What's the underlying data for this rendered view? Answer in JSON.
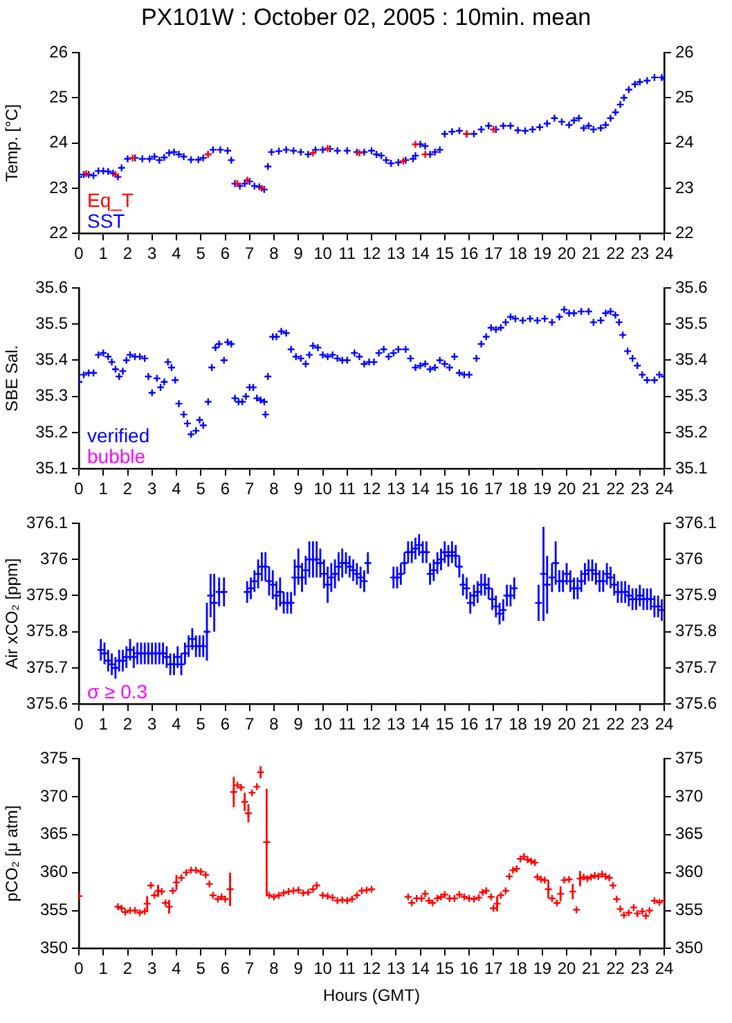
{
  "chart_data": [
    {
      "type": "scatter",
      "title": "PX101W : October 02, 2005 : 10min. mean",
      "ylabel": "Temp. [°C]",
      "xlim": [
        0,
        24
      ],
      "xticks": [
        0,
        1,
        2,
        3,
        4,
        5,
        6,
        7,
        8,
        9,
        10,
        11,
        12,
        13,
        14,
        15,
        16,
        17,
        18,
        19,
        20,
        21,
        22,
        23,
        24
      ],
      "ylim": [
        22,
        26
      ],
      "yticks": [
        22,
        23,
        24,
        25,
        26
      ],
      "y2lim": [
        22,
        26
      ],
      "y2ticks": [
        22,
        23,
        24,
        25,
        26
      ],
      "marker": "cross",
      "legend": "bottom left",
      "series": [
        {
          "name": "Eq_T",
          "color": "#ff0000",
          "x": [
            0.3,
            1.5,
            2.2,
            5.3,
            6.5,
            6.9,
            7.5,
            9.6,
            10.2,
            11.5,
            13.3,
            13.8,
            14.2,
            15.9,
            17.0
          ],
          "values": [
            23.32,
            23.3,
            23.67,
            23.75,
            23.1,
            23.18,
            23.0,
            23.78,
            23.88,
            23.78,
            23.6,
            23.97,
            23.75,
            24.2,
            24.3
          ]
        },
        {
          "name": "SST",
          "color": "#0000ff",
          "x": [
            0.0,
            0.2,
            0.4,
            0.6,
            0.8,
            1.0,
            1.2,
            1.4,
            1.6,
            1.75,
            2.0,
            2.3,
            2.6,
            2.9,
            3.1,
            3.3,
            3.5,
            3.7,
            3.9,
            4.1,
            4.3,
            4.6,
            4.9,
            5.1,
            5.3,
            5.5,
            5.8,
            6.1,
            6.25,
            6.4,
            6.6,
            6.8,
            7.0,
            7.2,
            7.4,
            7.6,
            7.75,
            7.9,
            8.2,
            8.5,
            8.8,
            9.1,
            9.4,
            9.7,
            10.0,
            10.3,
            10.6,
            11.0,
            11.4,
            11.7,
            12.0,
            12.2,
            12.4,
            12.6,
            12.8,
            13.1,
            13.4,
            13.7,
            13.8,
            14.0,
            14.2,
            14.4,
            14.6,
            14.8,
            15.0,
            15.3,
            15.6,
            15.9,
            16.2,
            16.5,
            16.8,
            17.1,
            17.4,
            17.7,
            18.0,
            18.3,
            18.6,
            18.9,
            19.2,
            19.5,
            19.8,
            20.1,
            20.3,
            20.5,
            20.7,
            20.9,
            21.1,
            21.4,
            21.6,
            21.8,
            22.0,
            22.2,
            22.35,
            22.55,
            22.8,
            23.0,
            23.3,
            23.6,
            23.9,
            24.0
          ],
          "values": [
            23.25,
            23.3,
            23.3,
            23.28,
            23.38,
            23.38,
            23.37,
            23.33,
            23.25,
            23.45,
            23.65,
            23.67,
            23.65,
            23.65,
            23.7,
            23.62,
            23.68,
            23.78,
            23.8,
            23.75,
            23.7,
            23.63,
            23.63,
            23.67,
            23.75,
            23.85,
            23.85,
            23.83,
            23.62,
            23.1,
            23.05,
            23.1,
            23.15,
            23.05,
            23.03,
            22.97,
            23.48,
            23.8,
            23.82,
            23.85,
            23.83,
            23.8,
            23.75,
            23.85,
            23.85,
            23.87,
            23.83,
            23.83,
            23.8,
            23.8,
            23.83,
            23.75,
            23.72,
            23.62,
            23.55,
            23.57,
            23.62,
            23.65,
            23.72,
            23.97,
            23.93,
            23.75,
            23.8,
            23.85,
            24.2,
            24.25,
            24.27,
            24.2,
            24.2,
            24.3,
            24.38,
            24.3,
            24.38,
            24.38,
            24.28,
            24.27,
            24.3,
            24.35,
            24.43,
            24.55,
            24.47,
            24.4,
            24.5,
            24.55,
            24.33,
            24.38,
            24.3,
            24.33,
            24.4,
            24.55,
            24.68,
            24.85,
            25.0,
            25.18,
            25.3,
            25.35,
            25.38,
            25.45,
            25.45,
            25.42
          ]
        }
      ]
    },
    {
      "type": "scatter",
      "ylabel": "SBE Sal.",
      "xlim": [
        0,
        24
      ],
      "xticks": [
        0,
        1,
        2,
        3,
        4,
        5,
        6,
        7,
        8,
        9,
        10,
        11,
        12,
        13,
        14,
        15,
        16,
        17,
        18,
        19,
        20,
        21,
        22,
        23,
        24
      ],
      "ylim": [
        35.1,
        35.6
      ],
      "yticks": [
        35.1,
        35.2,
        35.3,
        35.4,
        35.5,
        35.6
      ],
      "y2lim": [
        35.1,
        35.6
      ],
      "y2ticks": [
        35.1,
        35.2,
        35.3,
        35.4,
        35.5,
        35.6
      ],
      "marker": "cross",
      "legend": "bottom left",
      "series": [
        {
          "name": "verified",
          "color": "#0000ff",
          "x": [
            0.0,
            0.2,
            0.4,
            0.6,
            0.8,
            1.0,
            1.2,
            1.35,
            1.5,
            1.65,
            1.8,
            1.95,
            2.1,
            2.3,
            2.5,
            2.7,
            2.85,
            3.0,
            3.2,
            3.35,
            3.5,
            3.65,
            3.8,
            3.95,
            4.1,
            4.3,
            4.45,
            4.6,
            4.8,
            4.95,
            5.1,
            5.3,
            5.45,
            5.6,
            5.75,
            5.95,
            6.1,
            6.25,
            6.4,
            6.55,
            6.7,
            6.85,
            7.0,
            7.15,
            7.3,
            7.45,
            7.6,
            7.65,
            7.75,
            7.95,
            8.1,
            8.3,
            8.5,
            8.7,
            8.9,
            9.1,
            9.3,
            9.45,
            9.6,
            9.8,
            10.0,
            10.2,
            10.4,
            10.6,
            10.8,
            11.0,
            11.3,
            11.5,
            11.7,
            11.9,
            12.1,
            12.3,
            12.5,
            12.7,
            12.9,
            13.1,
            13.4,
            13.6,
            13.8,
            14.0,
            14.2,
            14.4,
            14.6,
            14.8,
            15.0,
            15.2,
            15.4,
            15.6,
            15.8,
            16.0,
            16.3,
            16.5,
            16.7,
            16.9,
            17.1,
            17.3,
            17.5,
            17.7,
            17.9,
            18.2,
            18.5,
            18.8,
            19.1,
            19.4,
            19.7,
            19.9,
            20.1,
            20.3,
            20.6,
            20.9,
            21.1,
            21.4,
            21.6,
            21.8,
            22.0,
            22.15,
            22.3,
            22.5,
            22.7,
            22.9,
            23.1,
            23.3,
            23.6,
            23.8,
            24.0
          ],
          "values": [
            35.34,
            35.36,
            35.365,
            35.365,
            35.415,
            35.42,
            35.41,
            35.395,
            35.375,
            35.355,
            35.37,
            35.4,
            35.415,
            35.41,
            35.41,
            35.405,
            35.355,
            35.31,
            35.35,
            35.325,
            35.34,
            35.395,
            35.38,
            35.345,
            35.28,
            35.25,
            35.225,
            35.195,
            35.205,
            35.235,
            35.22,
            35.285,
            35.38,
            35.435,
            35.445,
            35.4,
            35.45,
            35.445,
            35.295,
            35.285,
            35.285,
            35.3,
            35.325,
            35.325,
            35.295,
            35.29,
            35.285,
            35.25,
            35.355,
            35.465,
            35.465,
            35.48,
            35.475,
            35.43,
            35.41,
            35.405,
            35.39,
            35.415,
            35.44,
            35.435,
            35.415,
            35.41,
            35.415,
            35.405,
            35.4,
            35.4,
            35.42,
            35.41,
            35.39,
            35.395,
            35.395,
            35.42,
            35.43,
            35.41,
            35.42,
            35.43,
            35.43,
            35.405,
            35.38,
            35.385,
            35.39,
            35.375,
            35.38,
            35.4,
            35.39,
            35.38,
            35.41,
            35.365,
            35.36,
            35.36,
            35.405,
            35.445,
            35.465,
            35.49,
            35.485,
            35.49,
            35.505,
            35.52,
            35.515,
            35.51,
            35.515,
            35.51,
            35.515,
            35.505,
            35.52,
            35.54,
            35.53,
            35.53,
            35.535,
            35.535,
            35.505,
            35.51,
            35.53,
            35.535,
            35.525,
            35.505,
            35.47,
            35.425,
            35.405,
            35.385,
            35.36,
            35.345,
            35.345,
            35.36,
            35.355
          ]
        },
        {
          "name": "bubble",
          "color": "#ff00ff"
        }
      ]
    },
    {
      "type": "scatter",
      "ylabel": "Air xCO₂ [ppm]",
      "xlim": [
        0,
        24
      ],
      "xticks": [
        0,
        1,
        2,
        3,
        4,
        5,
        6,
        7,
        8,
        9,
        10,
        11,
        12,
        13,
        14,
        15,
        16,
        17,
        18,
        19,
        20,
        21,
        22,
        23,
        24
      ],
      "ylim": [
        375.6,
        376.1
      ],
      "yticks": [
        375.6,
        375.7,
        375.8,
        375.9,
        376,
        376.1
      ],
      "y2lim": [
        375.6,
        376.1
      ],
      "y2ticks": [
        375.6,
        375.7,
        375.8,
        375.9,
        376,
        376.1
      ],
      "marker": "cross",
      "series": [
        {
          "color": "#0000ff",
          "x": [
            0.9,
            1.05,
            1.2,
            1.35,
            1.5,
            1.65,
            1.8,
            1.95,
            2.1,
            2.25,
            2.4,
            2.55,
            2.7,
            2.85,
            3.0,
            3.15,
            3.3,
            3.45,
            3.6,
            3.75,
            3.9,
            4.05,
            4.2,
            4.35,
            4.5,
            4.65,
            4.8,
            4.95,
            5.1,
            5.25,
            5.4,
            5.55,
            5.75,
            5.95,
            6.9,
            7.05,
            7.2,
            7.35,
            7.5,
            7.65,
            7.8,
            7.95,
            8.1,
            8.25,
            8.4,
            8.55,
            8.7,
            8.85,
            9.0,
            9.15,
            9.3,
            9.45,
            9.6,
            9.75,
            9.9,
            10.05,
            10.2,
            10.35,
            10.5,
            10.65,
            10.8,
            10.95,
            11.1,
            11.25,
            11.4,
            11.55,
            11.7,
            11.85,
            12.9,
            13.05,
            13.2,
            13.35,
            13.5,
            13.65,
            13.8,
            13.95,
            14.1,
            14.25,
            14.4,
            14.55,
            14.7,
            14.85,
            15.0,
            15.15,
            15.3,
            15.45,
            15.6,
            15.75,
            15.9,
            16.05,
            16.2,
            16.35,
            16.5,
            16.65,
            16.8,
            16.95,
            17.1,
            17.25,
            17.4,
            17.55,
            17.7,
            17.85,
            18.85,
            19.05,
            19.2,
            19.4,
            19.55,
            19.7,
            19.85,
            20.0,
            20.15,
            20.3,
            20.45,
            20.6,
            20.75,
            20.9,
            21.05,
            21.2,
            21.35,
            21.5,
            21.65,
            21.8,
            21.95,
            22.1,
            22.25,
            22.4,
            22.55,
            22.7,
            22.85,
            23.0,
            23.15,
            23.3,
            23.45,
            23.6,
            23.75,
            23.9
          ],
          "values": [
            375.75,
            375.74,
            375.72,
            375.71,
            375.7,
            375.72,
            375.72,
            375.73,
            375.75,
            375.73,
            375.74,
            375.74,
            375.74,
            375.74,
            375.74,
            375.74,
            375.74,
            375.74,
            375.73,
            375.71,
            375.71,
            375.73,
            375.71,
            375.74,
            375.76,
            375.78,
            375.76,
            375.76,
            375.76,
            375.8,
            375.9,
            375.88,
            375.91,
            375.91,
            375.91,
            375.92,
            375.94,
            375.96,
            375.98,
            375.98,
            375.94,
            375.93,
            375.9,
            375.91,
            375.88,
            375.88,
            375.88,
            375.95,
            375.98,
            375.95,
            375.97,
            376.0,
            376.0,
            376.0,
            375.99,
            375.96,
            375.93,
            375.95,
            375.96,
            375.98,
            375.99,
            375.99,
            375.98,
            375.97,
            375.96,
            375.95,
            375.94,
            375.99,
            375.95,
            375.95,
            375.96,
            375.99,
            376.02,
            376.02,
            376.03,
            376.04,
            376.02,
            376.02,
            375.96,
            375.97,
            375.99,
            376.0,
            376.02,
            376.01,
            376.02,
            376.01,
            375.98,
            375.93,
            375.92,
            375.88,
            375.9,
            375.91,
            375.93,
            375.93,
            375.92,
            375.89,
            375.87,
            375.85,
            375.86,
            375.9,
            375.9,
            375.92,
            375.88,
            375.96,
            375.93,
            375.95,
            375.99,
            375.94,
            375.94,
            375.96,
            375.94,
            375.92,
            375.92,
            375.94,
            375.96,
            375.97,
            375.97,
            375.96,
            375.94,
            375.94,
            375.96,
            375.95,
            375.93,
            375.91,
            375.91,
            375.91,
            375.9,
            375.89,
            375.89,
            375.9,
            375.89,
            375.89,
            375.89,
            375.87,
            375.87,
            375.86
          ],
          "errors": [
            0.03,
            0.03,
            0.03,
            0.03,
            0.03,
            0.03,
            0.03,
            0.03,
            0.03,
            0.03,
            0.03,
            0.03,
            0.03,
            0.03,
            0.03,
            0.03,
            0.03,
            0.03,
            0.03,
            0.03,
            0.03,
            0.03,
            0.03,
            0.03,
            0.03,
            0.03,
            0.03,
            0.03,
            0.03,
            0.08,
            0.06,
            0.08,
            0.04,
            0.04,
            0.03,
            0.03,
            0.03,
            0.04,
            0.04,
            0.04,
            0.04,
            0.04,
            0.04,
            0.04,
            0.03,
            0.03,
            0.03,
            0.05,
            0.05,
            0.04,
            0.04,
            0.05,
            0.05,
            0.05,
            0.04,
            0.04,
            0.05,
            0.04,
            0.04,
            0.04,
            0.04,
            0.03,
            0.03,
            0.03,
            0.03,
            0.03,
            0.03,
            0.03,
            0.03,
            0.03,
            0.03,
            0.03,
            0.03,
            0.03,
            0.03,
            0.03,
            0.03,
            0.03,
            0.03,
            0.03,
            0.03,
            0.03,
            0.03,
            0.03,
            0.03,
            0.03,
            0.03,
            0.03,
            0.03,
            0.03,
            0.03,
            0.03,
            0.03,
            0.03,
            0.03,
            0.03,
            0.03,
            0.03,
            0.03,
            0.03,
            0.03,
            0.03,
            0.05,
            0.13,
            0.08,
            0.04,
            0.06,
            0.03,
            0.03,
            0.03,
            0.03,
            0.03,
            0.03,
            0.03,
            0.03,
            0.03,
            0.03,
            0.03,
            0.03,
            0.03,
            0.03,
            0.03,
            0.03,
            0.03,
            0.03,
            0.03,
            0.03,
            0.03,
            0.03,
            0.03,
            0.03,
            0.03,
            0.03,
            0.03,
            0.03,
            0.03
          ]
        },
        {
          "name": "σ ≥ 0.3",
          "color": "#ff00ff"
        }
      ]
    },
    {
      "type": "scatter",
      "ylabel": "pCO₂ [μ atm]",
      "xlabel": "Hours (GMT)",
      "xlim": [
        0,
        24
      ],
      "xticks": [
        0,
        1,
        2,
        3,
        4,
        5,
        6,
        7,
        8,
        9,
        10,
        11,
        12,
        13,
        14,
        15,
        16,
        17,
        18,
        19,
        20,
        21,
        22,
        23,
        24
      ],
      "ylim": [
        350,
        375
      ],
      "yticks": [
        350,
        355,
        360,
        365,
        370,
        375
      ],
      "y2lim": [
        350,
        375
      ],
      "y2ticks": [
        350,
        355,
        360,
        365,
        370,
        375
      ],
      "marker": "cross",
      "series": [
        {
          "color": "#ff0000",
          "x": [
            0.0,
            1.6,
            1.75,
            1.9,
            2.1,
            2.3,
            2.5,
            2.7,
            2.8,
            2.95,
            3.1,
            3.25,
            3.4,
            3.55,
            3.7,
            3.85,
            4.0,
            4.2,
            4.4,
            4.6,
            4.8,
            5.0,
            5.2,
            5.35,
            5.5,
            5.7,
            5.85,
            6.0,
            6.2,
            6.35,
            6.5,
            6.65,
            6.8,
            6.95,
            7.1,
            7.3,
            7.45,
            7.7,
            7.8,
            8.0,
            8.2,
            8.4,
            8.6,
            8.8,
            9.0,
            9.2,
            9.4,
            9.6,
            9.75,
            10.0,
            10.2,
            10.4,
            10.6,
            10.8,
            11.0,
            11.2,
            11.4,
            11.6,
            11.8,
            12.0,
            13.5,
            13.65,
            13.85,
            14.05,
            14.2,
            14.35,
            14.5,
            14.7,
            14.85,
            15.0,
            15.2,
            15.4,
            15.6,
            15.8,
            16.0,
            16.2,
            16.4,
            16.55,
            16.7,
            16.9,
            17.0,
            17.15,
            17.3,
            17.5,
            17.65,
            17.8,
            17.95,
            18.1,
            18.25,
            18.4,
            18.55,
            18.7,
            18.8,
            18.95,
            19.1,
            19.25,
            19.4,
            19.6,
            19.75,
            19.9,
            20.1,
            20.25,
            20.4,
            20.55,
            20.7,
            20.85,
            21.0,
            21.15,
            21.3,
            21.45,
            21.6,
            21.75,
            21.9,
            22.05,
            22.2,
            22.35,
            22.55,
            22.75,
            22.9,
            23.1,
            23.25,
            23.4,
            23.6,
            23.8,
            24.0
          ],
          "values": [
            356.9,
            355.5,
            355.3,
            354.8,
            355.0,
            355.0,
            354.7,
            354.9,
            355.9,
            358.3,
            357.0,
            357.6,
            357.5,
            356.0,
            355.5,
            357.6,
            358.7,
            359.3,
            360.0,
            360.3,
            360.3,
            360.1,
            359.7,
            358.5,
            357.0,
            356.5,
            356.8,
            356.5,
            357.8,
            370.6,
            371.5,
            371.2,
            369.3,
            367.8,
            370.5,
            371.3,
            373.2,
            364.0,
            357.0,
            356.8,
            357.0,
            357.3,
            357.5,
            357.6,
            357.7,
            357.3,
            357.4,
            357.8,
            358.3,
            357.0,
            356.9,
            356.7,
            356.3,
            356.4,
            356.3,
            356.5,
            357.0,
            357.6,
            357.7,
            357.8,
            356.8,
            356.0,
            356.6,
            356.6,
            357.2,
            356.3,
            356.0,
            356.6,
            356.8,
            357.1,
            356.6,
            356.6,
            357.1,
            356.8,
            356.6,
            356.5,
            356.7,
            357.4,
            357.6,
            356.8,
            355.3,
            355.9,
            357.0,
            357.6,
            359.5,
            360.3,
            360.5,
            361.8,
            362.1,
            361.7,
            361.5,
            361.3,
            359.4,
            359.1,
            359.0,
            357.8,
            356.6,
            356.0,
            357.2,
            359.0,
            359.1,
            357.5,
            355.1,
            359.2,
            359.4,
            359.2,
            359.4,
            359.6,
            359.5,
            359.8,
            359.5,
            359.3,
            358.3,
            356.5,
            355.2,
            354.4,
            354.7,
            355.4,
            354.6,
            354.9,
            354.3,
            355.0,
            356.3,
            356.1,
            356.3
          ],
          "errors": [
            null,
            null,
            null,
            null,
            null,
            null,
            null,
            null,
            1,
            null,
            null,
            0.8,
            null,
            null,
            0.9,
            null,
            1,
            null,
            null,
            null,
            null,
            null,
            null,
            null,
            null,
            null,
            null,
            null,
            2.2,
            2,
            null,
            null,
            1.2,
            1.2,
            null,
            null,
            0.8,
            7,
            null,
            null,
            null,
            null,
            null,
            null,
            null,
            null,
            null,
            null,
            null,
            null,
            null,
            null,
            null,
            null,
            null,
            null,
            null,
            null,
            null,
            null,
            null,
            null,
            null,
            null,
            null,
            null,
            null,
            null,
            null,
            null,
            null,
            null,
            null,
            null,
            null,
            null,
            null,
            null,
            null,
            null,
            null,
            1,
            null,
            null,
            null,
            null,
            null,
            null,
            null,
            null,
            null,
            null,
            null,
            null,
            null,
            1.2,
            null,
            null,
            1,
            null,
            null,
            1,
            null,
            1,
            null,
            null,
            null,
            null,
            null,
            null,
            null,
            null,
            null,
            null,
            null,
            null,
            null,
            null,
            null,
            null,
            null,
            null,
            null,
            null,
            null
          ]
        }
      ]
    }
  ]
}
